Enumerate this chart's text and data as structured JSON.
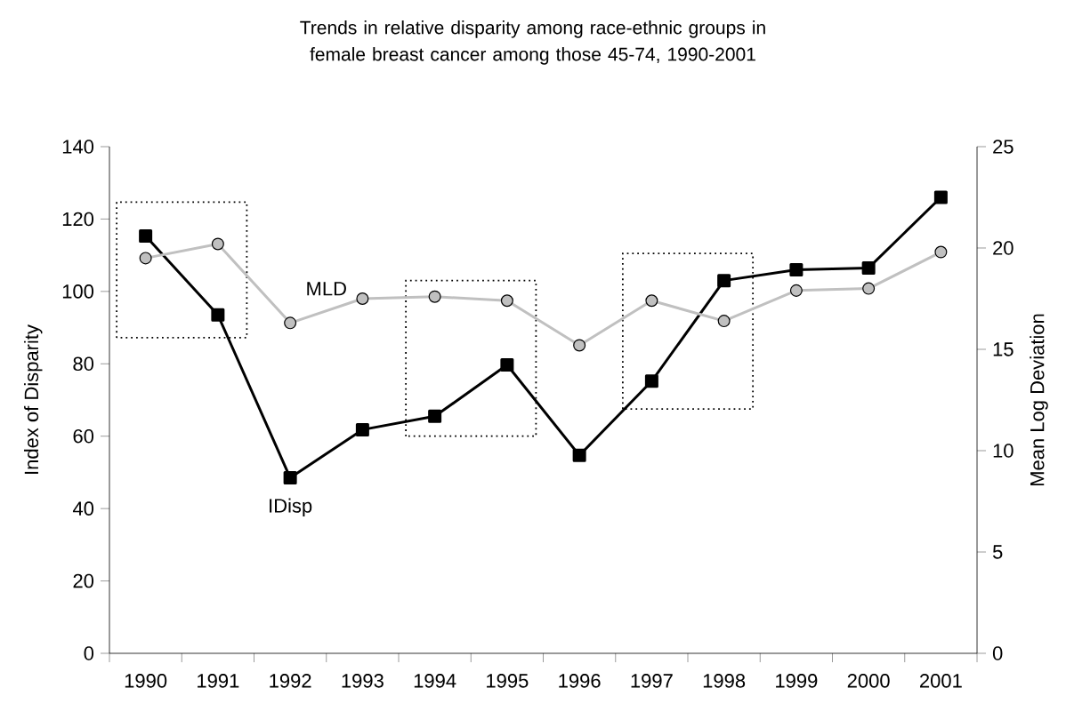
{
  "chart_data": {
    "type": "line",
    "title": "Trends in relative disparity among race-ethnic groups in female breast cancer among those 45-74, 1990-2001",
    "categories": [
      "1990",
      "1991",
      "1992",
      "1993",
      "1994",
      "1995",
      "1996",
      "1997",
      "1998",
      "1999",
      "2000",
      "2001"
    ],
    "series": [
      {
        "name": "IDisp",
        "color": "#000000",
        "marker": "square",
        "values": [
          115.3,
          93.5,
          48.5,
          61.8,
          65.5,
          79.7,
          54.7,
          75.2,
          103,
          106,
          106.5,
          126
        ]
      },
      {
        "name": "MLD",
        "color": "#c0c0c0",
        "marker": "circle",
        "axis": "y2",
        "values": [
          19.5,
          20.2,
          16.3,
          17.5,
          17.6,
          17.4,
          15.2,
          17.4,
          16.4,
          17.9,
          18.0,
          19.8
        ]
      }
    ],
    "ylabel": "Index of Disparity",
    "y2label": "Mean Log Deviation",
    "ylim": [
      0,
      140
    ],
    "yticks": [
      0,
      20,
      40,
      60,
      80,
      100,
      120,
      140
    ],
    "y2lim": [
      0,
      25
    ],
    "y2ticks": [
      0,
      5,
      10,
      15,
      20,
      25
    ],
    "grid": false,
    "legend": false,
    "line_style": "solid"
  }
}
